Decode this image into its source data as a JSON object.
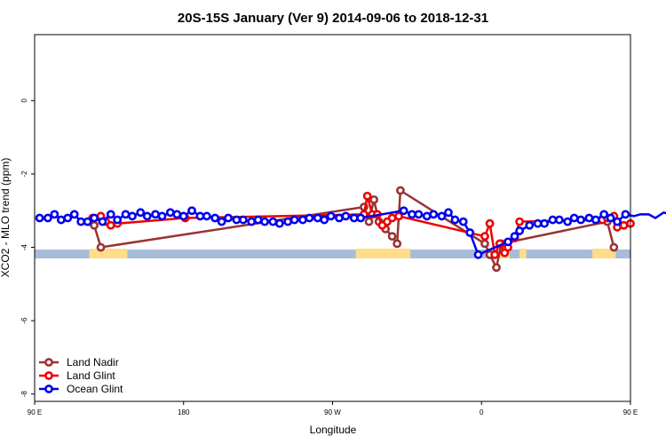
{
  "chart_data": {
    "type": "line",
    "title": "20S-15S January (Ver 9)   2014-09-06 to 2018-12-31",
    "xlabel": "Longitude",
    "ylabel": "XCO2 - MLO trend (ppm)",
    "xlim": [
      90,
      450
    ],
    "ylim": [
      -8.2,
      1.8
    ],
    "x_ticks": [
      {
        "value": 90,
        "label": "90 E"
      },
      {
        "value": 180,
        "label": "180"
      },
      {
        "value": 270,
        "label": "90 W"
      },
      {
        "value": 360,
        "label": "0"
      },
      {
        "value": 450,
        "label": "90 E"
      },
      {
        "value": 540,
        "label": "180"
      }
    ],
    "y_ticks": [
      {
        "value": 0,
        "label": "0"
      },
      {
        "value": -2,
        "label": "-2"
      },
      {
        "value": -4,
        "label": "-4"
      },
      {
        "value": -6,
        "label": "-6"
      },
      {
        "value": -8,
        "label": "-8"
      }
    ],
    "land_band": [
      {
        "x0": 123,
        "x1": 146
      },
      {
        "x0": 284,
        "x1": 317
      },
      {
        "x0": 371,
        "x1": 377
      },
      {
        "x0": 383,
        "x1": 387
      },
      {
        "x0": 427,
        "x1": 441
      }
    ],
    "colors": {
      "land_nadir": "#993333",
      "land_glint": "#ee0000",
      "ocean_glint": "#0000ee",
      "land_band": "#ffdd88",
      "ocean_band": "#a8bcd8"
    },
    "legend_position": "bottom-left",
    "series": [
      {
        "name": "Land Nadir",
        "key": "land_nadir",
        "points": [
          [
            123,
            -3.3
          ],
          [
            126,
            -3.4
          ],
          [
            130,
            -4.0
          ],
          [
            289,
            -2.9
          ],
          [
            292,
            -3.3
          ],
          [
            295,
            -2.7
          ],
          [
            298,
            -3.3
          ],
          [
            302,
            -3.5
          ],
          [
            306,
            -3.7
          ],
          [
            309,
            -3.9
          ],
          [
            311,
            -2.45
          ],
          [
            362,
            -3.9
          ],
          [
            365,
            -4.2
          ],
          [
            369,
            -4.55
          ],
          [
            372,
            -3.9
          ],
          [
            436,
            -3.3
          ],
          [
            440,
            -4.0
          ]
        ]
      },
      {
        "name": "Land Glint",
        "key": "land_glint",
        "points": [
          [
            125,
            -3.2
          ],
          [
            130,
            -3.15
          ],
          [
            133,
            -3.3
          ],
          [
            136,
            -3.4
          ],
          [
            140,
            -3.35
          ],
          [
            181,
            -3.2
          ],
          [
            289,
            -3.1
          ],
          [
            291,
            -2.6
          ],
          [
            294,
            -3.1
          ],
          [
            297,
            -3.1
          ],
          [
            300,
            -3.4
          ],
          [
            303,
            -3.3
          ],
          [
            306,
            -3.2
          ],
          [
            310,
            -3.15
          ],
          [
            362,
            -3.7
          ],
          [
            365,
            -3.35
          ],
          [
            368,
            -4.2
          ],
          [
            371,
            -3.9
          ],
          [
            374,
            -4.15
          ],
          [
            376,
            -4.0
          ],
          [
            380,
            -3.75
          ],
          [
            383,
            -3.3
          ],
          [
            433,
            -3.25
          ],
          [
            436,
            -3.2
          ],
          [
            440,
            -3.15
          ],
          [
            442,
            -3.45
          ],
          [
            446,
            -3.4
          ],
          [
            450,
            -3.35
          ]
        ]
      },
      {
        "name": "Ocean Glint",
        "key": "ocean_glint",
        "points": [
          [
            93,
            -3.2
          ],
          [
            98,
            -3.2
          ],
          [
            102,
            -3.1
          ],
          [
            106,
            -3.25
          ],
          [
            110,
            -3.2
          ],
          [
            114,
            -3.1
          ],
          [
            118,
            -3.3
          ],
          [
            122,
            -3.3
          ],
          [
            126,
            -3.2
          ],
          [
            131,
            -3.3
          ],
          [
            136,
            -3.1
          ],
          [
            140,
            -3.25
          ],
          [
            145,
            -3.1
          ],
          [
            149,
            -3.15
          ],
          [
            154,
            -3.05
          ],
          [
            158,
            -3.15
          ],
          [
            163,
            -3.1
          ],
          [
            167,
            -3.15
          ],
          [
            172,
            -3.05
          ],
          [
            176,
            -3.1
          ],
          [
            180,
            -3.15
          ],
          [
            185,
            -3.0
          ],
          [
            190,
            -3.15
          ],
          [
            194,
            -3.15
          ],
          [
            199,
            -3.2
          ],
          [
            203,
            -3.3
          ],
          [
            207,
            -3.2
          ],
          [
            212,
            -3.25
          ],
          [
            216,
            -3.25
          ],
          [
            221,
            -3.3
          ],
          [
            225,
            -3.25
          ],
          [
            229,
            -3.3
          ],
          [
            234,
            -3.3
          ],
          [
            238,
            -3.35
          ],
          [
            243,
            -3.3
          ],
          [
            247,
            -3.25
          ],
          [
            252,
            -3.25
          ],
          [
            256,
            -3.2
          ],
          [
            261,
            -3.2
          ],
          [
            265,
            -3.25
          ],
          [
            269,
            -3.15
          ],
          [
            274,
            -3.2
          ],
          [
            278,
            -3.15
          ],
          [
            283,
            -3.2
          ],
          [
            287,
            -3.2
          ],
          [
            313,
            -3.0
          ],
          [
            318,
            -3.1
          ],
          [
            322,
            -3.1
          ],
          [
            327,
            -3.15
          ],
          [
            331,
            -3.1
          ],
          [
            336,
            -3.15
          ],
          [
            340,
            -3.05
          ],
          [
            344,
            -3.25
          ],
          [
            349,
            -3.3
          ],
          [
            353,
            -3.6
          ],
          [
            358,
            -4.2
          ],
          [
            376,
            -3.85
          ],
          [
            380,
            -3.7
          ],
          [
            383,
            -3.55
          ],
          [
            389,
            -3.4
          ],
          [
            394,
            -3.35
          ],
          [
            398,
            -3.35
          ],
          [
            403,
            -3.25
          ],
          [
            407,
            -3.25
          ],
          [
            412,
            -3.3
          ],
          [
            416,
            -3.2
          ],
          [
            420,
            -3.25
          ],
          [
            425,
            -3.2
          ],
          [
            429,
            -3.25
          ],
          [
            434,
            -3.1
          ],
          [
            438,
            -3.2
          ],
          [
            442,
            -3.3
          ],
          [
            447,
            -3.1
          ],
          [
            452,
            -3.15
          ],
          [
            456,
            -3.1
          ],
          [
            461,
            -3.1
          ],
          [
            465,
            -3.2
          ],
          [
            470,
            -3.05
          ],
          [
            474,
            -3.1
          ],
          [
            479,
            -3.0
          ],
          [
            483,
            -3.1
          ],
          [
            488,
            -3.1
          ],
          [
            492,
            -3.1
          ]
        ]
      }
    ]
  }
}
